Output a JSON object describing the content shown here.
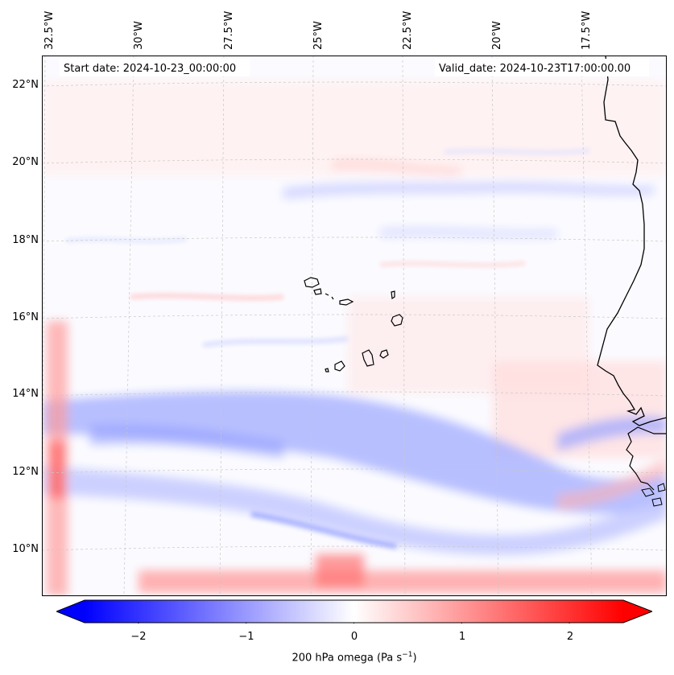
{
  "map": {
    "start_date": "Start date: 2024-10-23_00:00:00",
    "valid_date": "Valid_date: 2024-10-23T17:00:00.00",
    "lon_labels": [
      "32.5°W",
      "30°W",
      "27.5°W",
      "25°W",
      "22.5°W",
      "20°W",
      "17.5°W"
    ],
    "lat_labels": [
      "22°N",
      "20°N",
      "18°N",
      "16°N",
      "14°N",
      "12°N",
      "10°N"
    ],
    "field": "200 hPa omega",
    "colormap": "bwr",
    "colors": {
      "negative": "#0000ff",
      "neutral": "#ffffff",
      "positive": "#ff0000",
      "coast": "#000000",
      "grid": "#bbbbbb"
    }
  },
  "colorbar": {
    "ticks": [
      "−2",
      "−1",
      "0",
      "1",
      "2"
    ],
    "tick_values": [
      -2,
      -1,
      0,
      1,
      2
    ],
    "range": [
      -2.5,
      2.5
    ],
    "extend": "both",
    "label": "200 hPa omega (Pa s",
    "label_sup": "−1",
    "label_end": ")"
  }
}
